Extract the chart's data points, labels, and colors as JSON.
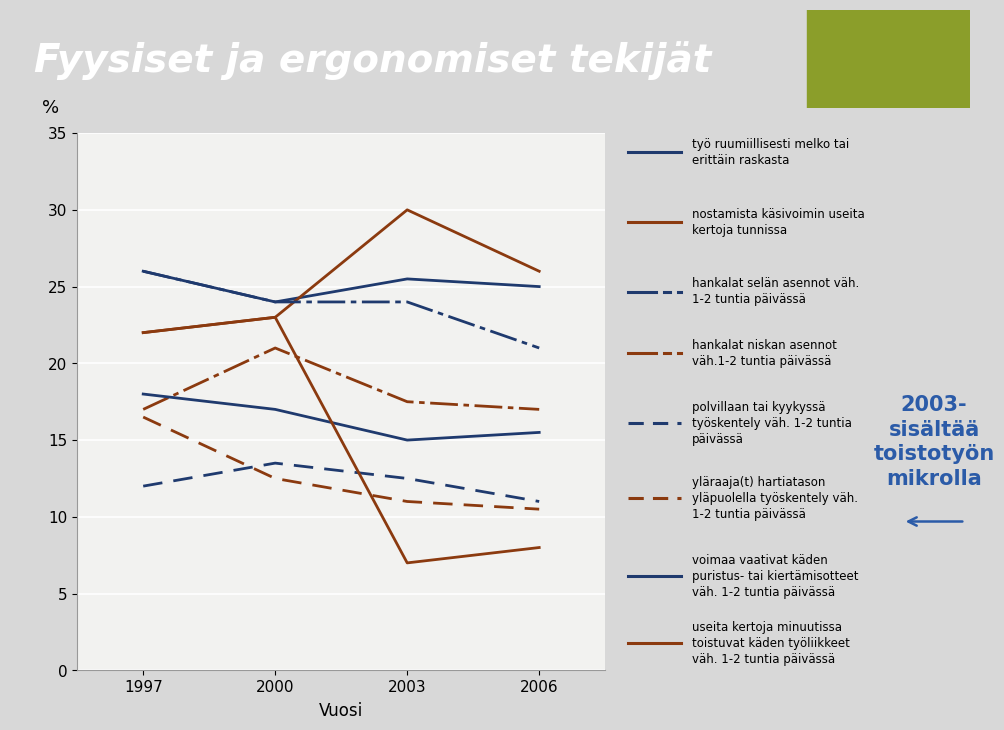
{
  "title": "Fyysiset ja ergonomiset tekijät",
  "years": [
    1997,
    2000,
    2003,
    2006
  ],
  "series": [
    {
      "name": "työ ruumiillisesti melko tai\nerittäin raskasta",
      "values": [
        26,
        24,
        25.5,
        25
      ],
      "color": "#1F3A6E",
      "linestyle": "solid",
      "linewidth": 2.0
    },
    {
      "name": "nostamista käsivoimin useita\nkertoja tunnissa",
      "values": [
        22,
        23,
        30,
        26
      ],
      "color": "#8B3A0F",
      "linestyle": "solid",
      "linewidth": 2.0
    },
    {
      "name": "hankalat selän asennot väh.\n1-2 tuntia päivässä",
      "values": [
        26,
        24,
        24,
        21
      ],
      "color": "#1F3A6E",
      "linestyle": "dashdot",
      "linewidth": 2.0
    },
    {
      "name": "hankalat niskan asennot\nväh.1-2 tuntia päivässä",
      "values": [
        17,
        21,
        17.5,
        17
      ],
      "color": "#8B3A0F",
      "linestyle": "dashdot",
      "linewidth": 2.0
    },
    {
      "name": "polvillaan tai kyykyssä\ntyöskentely väh. 1-2 tuntia\npäivässä",
      "values": [
        12,
        13.5,
        12.5,
        11
      ],
      "color": "#1F3A6E",
      "linestyle": "dashed",
      "linewidth": 2.0
    },
    {
      "name": "yläraaja(t) hartiatason\nyläpuolella työskentely väh.\n1-2 tuntia päivässä",
      "values": [
        16.5,
        12.5,
        11,
        10.5
      ],
      "color": "#8B3A0F",
      "linestyle": "dashed",
      "linewidth": 2.0
    },
    {
      "name": "voimaa vaativat käden\npuristus- tai kiertämisotteet\nväh. 1-2 tuntia päivässä",
      "values": [
        18,
        17,
        15,
        15.5
      ],
      "color": "#1F3A6E",
      "linestyle": "solid",
      "linewidth": 2.0
    },
    {
      "name": "useita kertoja minuutissa\ntoistuvat käden työliikkeet\nväh. 1-2 tuntia päivässä",
      "values": [
        22,
        23,
        7,
        8
      ],
      "color": "#8B3A0F",
      "linestyle": "solid",
      "linewidth": 2.0
    }
  ],
  "ylabel": "%",
  "xlabel": "Vuosi",
  "ylim": [
    0,
    35
  ],
  "yticks": [
    0,
    5,
    10,
    15,
    20,
    25,
    30,
    35
  ],
  "bg_color": "#D8D8D8",
  "plot_bg_color": "#F2F2F0",
  "title_bg_color": "#1F3A8A",
  "title_color": "#FFFFFF",
  "legend_bg_color": "#FFFFFF",
  "annotation": "2003-\nsisältää\ntoistotyön\nmikrolla",
  "annotation_color": "#2B5BA8",
  "olive_color": "#8B9E2A"
}
